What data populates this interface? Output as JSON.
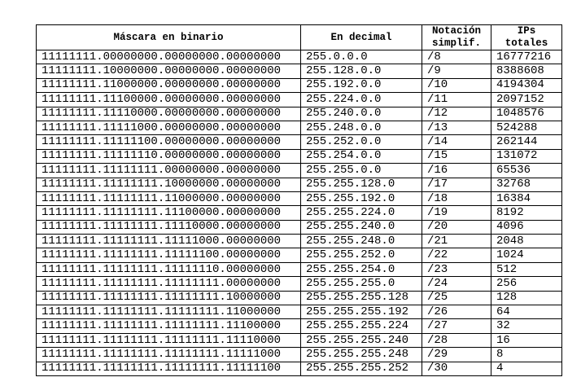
{
  "table": {
    "header": [
      "Máscara en binario",
      "En decimal",
      "Notación simplif.",
      "IPs totales"
    ],
    "rows": [
      [
        "11111111.00000000.00000000.00000000",
        "255.0.0.0",
        "/8",
        16777216
      ],
      [
        "11111111.10000000.00000000.00000000",
        "255.128.0.0",
        "/9",
        8388608
      ],
      [
        "11111111.11000000.00000000.00000000",
        "255.192.0.0",
        "/10",
        4194304
      ],
      [
        "11111111.11100000.00000000.00000000",
        "255.224.0.0",
        "/11",
        2097152
      ],
      [
        "11111111.11110000.00000000.00000000",
        "255.240.0.0",
        "/12",
        1048576
      ],
      [
        "11111111.11111000.00000000.00000000",
        "255.248.0.0",
        "/13",
        524288
      ],
      [
        "11111111.11111100.00000000.00000000",
        "255.252.0.0",
        "/14",
        262144
      ],
      [
        "11111111.11111110.00000000.00000000",
        "255.254.0.0",
        "/15",
        131072
      ],
      [
        "11111111.11111111.00000000.00000000",
        "255.255.0.0",
        "/16",
        65536
      ],
      [
        "11111111.11111111.10000000.00000000",
        "255.255.128.0",
        "/17",
        32768
      ],
      [
        "11111111.11111111.11000000.00000000",
        "255.255.192.0",
        "/18",
        16384
      ],
      [
        "11111111.11111111.11100000.00000000",
        "255.255.224.0",
        "/19",
        8192
      ],
      [
        "11111111.11111111.11110000.00000000",
        "255.255.240.0",
        "/20",
        4096
      ],
      [
        "11111111.11111111.11111000.00000000",
        "255.255.248.0",
        "/21",
        2048
      ],
      [
        "11111111.11111111.11111100.00000000",
        "255.255.252.0",
        "/22",
        1024
      ],
      [
        "11111111.11111111.11111110.00000000",
        "255.255.254.0",
        "/23",
        512
      ],
      [
        "11111111.11111111.11111111.00000000",
        "255.255.255.0",
        "/24",
        256
      ],
      [
        "11111111.11111111.11111111.10000000",
        "255.255.255.128",
        "/25",
        128
      ],
      [
        "11111111.11111111.11111111.11000000",
        "255.255.255.192",
        "/26",
        64
      ],
      [
        "11111111.11111111.11111111.11100000",
        "255.255.255.224",
        "/27",
        32
      ],
      [
        "11111111.11111111.11111111.11110000",
        "255.255.255.240",
        "/28",
        16
      ],
      [
        "11111111.11111111.11111111.11111000",
        "255.255.255.248",
        "/29",
        8
      ],
      [
        "11111111.11111111.11111111.11111100",
        "255.255.255.252",
        "/30",
        4
      ]
    ]
  }
}
